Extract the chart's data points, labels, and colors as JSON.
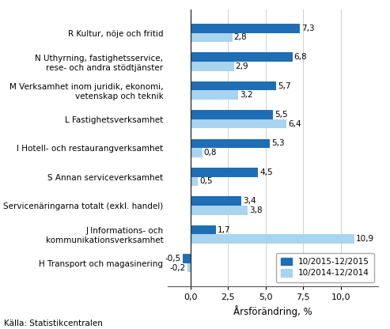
{
  "categories": [
    "H Transport och magasinering",
    "J Informations- och\nkommunikationsverksamhet",
    "Servicenäringarna totalt (exkl. handel)",
    "S Annan serviceverksamhet",
    "I Hotell- och restaurangverksamhet",
    "L Fastighetsverksamhet",
    "M Verksamhet inom juridik, ekonomi,\nvetenskap och teknik",
    "N Uthyrning, fastighetsservice,\nrese- och andra stödtjänster",
    "R Kultur, nöje och fritid"
  ],
  "series1_values": [
    -0.5,
    1.7,
    3.4,
    4.5,
    5.3,
    5.5,
    5.7,
    6.8,
    7.3
  ],
  "series2_values": [
    -0.2,
    10.9,
    3.8,
    0.5,
    0.8,
    6.4,
    3.2,
    2.9,
    2.8
  ],
  "series1_color": "#1F6EB5",
  "series2_color": "#A8D4F0",
  "series1_label": "10/2015-12/2015",
  "series2_label": "10/2014-12/2014",
  "xlabel": "Årsförändring, %",
  "xlim": [
    -1.5,
    12.5
  ],
  "xticks": [
    0.0,
    2.5,
    5.0,
    7.5,
    10.0
  ],
  "xticklabels": [
    "0,0",
    "2,5",
    "5,0",
    "7,5",
    "10,0"
  ],
  "source_text": "Källa: Statistikcentralen",
  "bar_height": 0.32,
  "background_color": "#ffffff",
  "label_fontsize": 7.5,
  "ytick_fontsize": 7.5,
  "xtick_fontsize": 8.0,
  "xlabel_fontsize": 8.5
}
